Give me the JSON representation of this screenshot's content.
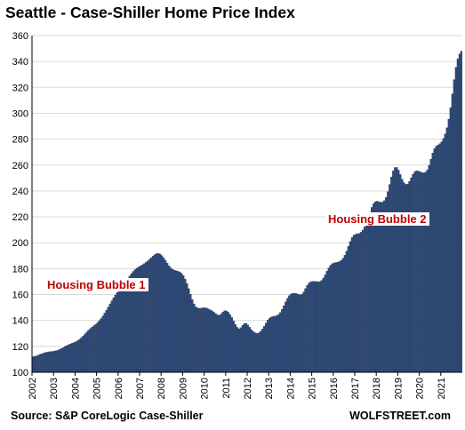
{
  "chart_data": {
    "type": "bar",
    "title": "Seattle - Case-Shiller Home Price Index",
    "xlabel": "",
    "ylabel": "",
    "ylim": [
      100,
      360
    ],
    "yticks": [
      100,
      120,
      140,
      160,
      180,
      200,
      220,
      240,
      260,
      280,
      300,
      320,
      340,
      360
    ],
    "xticks": [
      "2002",
      "2003",
      "2004",
      "2005",
      "2006",
      "2007",
      "2008",
      "2009",
      "2010",
      "2011",
      "2012",
      "2013",
      "2014",
      "2015",
      "2016",
      "2017",
      "2018",
      "2019",
      "2020",
      "2021"
    ],
    "x_start": "2002-01",
    "x_end": "2021-12",
    "frequency": "monthly",
    "bar_color": "#2e4a78",
    "grid": true,
    "values": [
      112.0,
      112.3,
      112.7,
      113.2,
      113.8,
      114.3,
      114.8,
      115.2,
      115.5,
      115.8,
      116.0,
      116.1,
      116.3,
      116.6,
      117.0,
      117.6,
      118.3,
      119.1,
      119.9,
      120.6,
      121.3,
      121.9,
      122.5,
      123.0,
      123.6,
      124.4,
      125.4,
      126.6,
      128.0,
      129.5,
      131.0,
      132.4,
      133.7,
      134.9,
      136.0,
      137.0,
      138.3,
      139.8,
      141.5,
      143.5,
      145.7,
      148.0,
      150.4,
      152.8,
      155.2,
      157.5,
      159.6,
      161.5,
      163.2,
      164.9,
      166.6,
      168.4,
      170.3,
      172.3,
      174.3,
      176.2,
      177.9,
      179.3,
      180.4,
      181.3,
      182.1,
      182.9,
      183.8,
      184.8,
      185.9,
      187.2,
      188.5,
      189.8,
      190.9,
      191.6,
      191.8,
      191.3,
      190.1,
      188.4,
      186.4,
      184.2,
      182.2,
      180.6,
      179.5,
      178.8,
      178.4,
      178.0,
      177.4,
      176.4,
      174.6,
      172.0,
      168.6,
      164.6,
      160.3,
      156.2,
      152.8,
      150.5,
      149.6,
      149.4,
      149.6,
      149.8,
      149.8,
      149.5,
      148.9,
      148.2,
      147.4,
      146.4,
      145.3,
      144.3,
      144.0,
      145.0,
      146.5,
      147.5,
      147.4,
      146.4,
      144.6,
      142.3,
      139.7,
      137.0,
      134.7,
      133.6,
      134.5,
      136.3,
      137.7,
      137.8,
      136.6,
      134.7,
      132.8,
      131.4,
      130.5,
      130.0,
      130.4,
      131.6,
      133.4,
      135.6,
      138.0,
      140.2,
      141.8,
      142.7,
      143.1,
      143.3,
      143.7,
      144.6,
      146.2,
      148.5,
      151.4,
      154.4,
      157.1,
      159.2,
      160.4,
      160.9,
      161.0,
      160.8,
      160.3,
      159.8,
      160.2,
      162.0,
      164.6,
      167.1,
      168.9,
      169.9,
      170.2,
      170.2,
      170.1,
      169.9,
      170.0,
      170.9,
      172.7,
      175.2,
      178.0,
      180.6,
      182.6,
      183.8,
      184.4,
      184.7,
      185.0,
      185.5,
      186.4,
      188.0,
      190.4,
      193.6,
      197.3,
      201.0,
      204.0,
      205.8,
      206.6,
      206.8,
      207.2,
      208.1,
      209.8,
      212.3,
      215.6,
      219.5,
      223.5,
      227.3,
      230.1,
      231.7,
      232.1,
      231.7,
      231.3,
      231.4,
      232.5,
      235.1,
      239.5,
      245.0,
      250.8,
      255.5,
      258.1,
      258.2,
      256.1,
      252.7,
      249.1,
      246.5,
      245.1,
      245.4,
      247.4,
      250.2,
      252.9,
      254.8,
      255.6,
      255.4,
      254.8,
      254.2,
      254.0,
      254.5,
      256.3,
      259.8,
      264.5,
      269.3,
      272.7,
      274.6,
      275.5,
      276.5,
      278.0,
      280.5,
      284.0,
      288.9,
      295.5,
      304.3,
      315.0,
      326.0,
      335.5,
      342.0,
      345.8,
      348.0
    ]
  },
  "annotations": [
    "Housing Bubble 1",
    "Housing Bubble 2"
  ],
  "footer": {
    "source": "Source: S&P CoreLogic Case-Shiller",
    "brand": "WOLFSTREET.com"
  }
}
